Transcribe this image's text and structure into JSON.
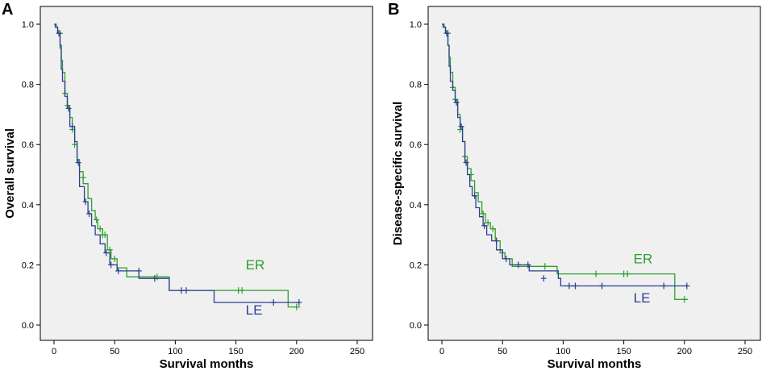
{
  "chart_data": [
    {
      "panel": "A",
      "type": "line",
      "subtype": "kaplan-meier-step",
      "title": "",
      "xlabel": "Survival months",
      "ylabel": "Overall survival",
      "xlim": [
        0,
        250
      ],
      "ylim": [
        0,
        1.0
      ],
      "xticks": [
        "0",
        "50",
        "100",
        "150",
        "200",
        "250"
      ],
      "yticks": [
        "0.0",
        "0.2",
        "0.4",
        "0.6",
        "0.8",
        "1.0"
      ],
      "grid": false,
      "legend_position": "inline-right",
      "series": [
        {
          "name": "ER",
          "label_pos": [
            158,
            0.185
          ],
          "steps": [
            [
              0,
              1.0
            ],
            [
              2,
              1.0
            ],
            [
              2,
              0.99
            ],
            [
              3,
              0.99
            ],
            [
              3,
              0.97
            ],
            [
              5,
              0.97
            ],
            [
              5,
              0.92
            ],
            [
              6,
              0.92
            ],
            [
              6,
              0.88
            ],
            [
              7,
              0.88
            ],
            [
              7,
              0.84
            ],
            [
              9,
              0.84
            ],
            [
              9,
              0.77
            ],
            [
              11,
              0.77
            ],
            [
              11,
              0.73
            ],
            [
              13,
              0.73
            ],
            [
              13,
              0.69
            ],
            [
              15,
              0.69
            ],
            [
              15,
              0.65
            ],
            [
              17,
              0.65
            ],
            [
              17,
              0.6
            ],
            [
              19,
              0.6
            ],
            [
              19,
              0.55
            ],
            [
              21,
              0.55
            ],
            [
              21,
              0.51
            ],
            [
              24,
              0.51
            ],
            [
              24,
              0.47
            ],
            [
              28,
              0.47
            ],
            [
              28,
              0.42
            ],
            [
              31,
              0.42
            ],
            [
              31,
              0.38
            ],
            [
              34,
              0.38
            ],
            [
              34,
              0.35
            ],
            [
              36,
              0.35
            ],
            [
              36,
              0.32
            ],
            [
              40,
              0.32
            ],
            [
              40,
              0.3
            ],
            [
              44,
              0.3
            ],
            [
              44,
              0.25
            ],
            [
              47,
              0.25
            ],
            [
              47,
              0.22
            ],
            [
              52,
              0.22
            ],
            [
              52,
              0.19
            ],
            [
              60,
              0.19
            ],
            [
              60,
              0.16
            ],
            [
              95,
              0.16
            ],
            [
              95,
              0.115
            ],
            [
              193,
              0.115
            ],
            [
              193,
              0.06
            ],
            [
              203,
              0.06
            ]
          ],
          "censored": [
            [
              5,
              0.97
            ],
            [
              9,
              0.77
            ],
            [
              11,
              0.73
            ],
            [
              15,
              0.65
            ],
            [
              17,
              0.6
            ],
            [
              24,
              0.49
            ],
            [
              35,
              0.35
            ],
            [
              38,
              0.32
            ],
            [
              40,
              0.3
            ],
            [
              42,
              0.3
            ],
            [
              46,
              0.25
            ],
            [
              50,
              0.22
            ],
            [
              85,
              0.16
            ],
            [
              152,
              0.115
            ],
            [
              155,
              0.115
            ],
            [
              200,
              0.06
            ]
          ],
          "color": "#2ca02c"
        },
        {
          "name": "LE",
          "label_pos": [
            158,
            0.035
          ],
          "steps": [
            [
              0,
              1.0
            ],
            [
              1,
              1.0
            ],
            [
              1,
              0.99
            ],
            [
              3,
              0.99
            ],
            [
              3,
              0.97
            ],
            [
              5,
              0.97
            ],
            [
              5,
              0.93
            ],
            [
              6,
              0.93
            ],
            [
              6,
              0.85
            ],
            [
              7,
              0.85
            ],
            [
              7,
              0.81
            ],
            [
              9,
              0.81
            ],
            [
              9,
              0.76
            ],
            [
              11,
              0.76
            ],
            [
              11,
              0.72
            ],
            [
              13,
              0.72
            ],
            [
              13,
              0.66
            ],
            [
              17,
              0.66
            ],
            [
              17,
              0.61
            ],
            [
              19,
              0.61
            ],
            [
              19,
              0.54
            ],
            [
              21,
              0.54
            ],
            [
              21,
              0.46
            ],
            [
              25,
              0.46
            ],
            [
              25,
              0.41
            ],
            [
              28,
              0.41
            ],
            [
              28,
              0.37
            ],
            [
              31,
              0.37
            ],
            [
              31,
              0.33
            ],
            [
              34,
              0.33
            ],
            [
              34,
              0.3
            ],
            [
              38,
              0.3
            ],
            [
              38,
              0.27
            ],
            [
              42,
              0.27
            ],
            [
              42,
              0.24
            ],
            [
              46,
              0.24
            ],
            [
              46,
              0.2
            ],
            [
              52,
              0.2
            ],
            [
              52,
              0.18
            ],
            [
              70,
              0.18
            ],
            [
              70,
              0.155
            ],
            [
              95,
              0.155
            ],
            [
              95,
              0.115
            ],
            [
              132,
              0.115
            ],
            [
              132,
              0.075
            ],
            [
              203,
              0.075
            ]
          ],
          "censored": [
            [
              4,
              0.97
            ],
            [
              12,
              0.72
            ],
            [
              15,
              0.66
            ],
            [
              20,
              0.54
            ],
            [
              26,
              0.41
            ],
            [
              29,
              0.37
            ],
            [
              43,
              0.24
            ],
            [
              47,
              0.2
            ],
            [
              53,
              0.18
            ],
            [
              70,
              0.18
            ],
            [
              83,
              0.155
            ],
            [
              105,
              0.115
            ],
            [
              109,
              0.115
            ],
            [
              181,
              0.075
            ],
            [
              202,
              0.075
            ]
          ],
          "color": "#2e3f8f"
        }
      ]
    },
    {
      "panel": "B",
      "type": "line",
      "subtype": "kaplan-meier-step",
      "title": "",
      "xlabel": "Survival months",
      "ylabel": "Disease-specific survival",
      "xlim": [
        0,
        250
      ],
      "ylim": [
        0,
        1.0
      ],
      "xticks": [
        "0",
        "50",
        "100",
        "150",
        "200",
        "250"
      ],
      "yticks": [
        "0.0",
        "0.2",
        "0.4",
        "0.6",
        "0.8",
        "1.0"
      ],
      "grid": false,
      "legend_position": "inline-right",
      "series": [
        {
          "name": "ER",
          "label_pos": [
            158,
            0.205
          ],
          "steps": [
            [
              0,
              1.0
            ],
            [
              2,
              1.0
            ],
            [
              2,
              0.99
            ],
            [
              3,
              0.99
            ],
            [
              3,
              0.97
            ],
            [
              5,
              0.97
            ],
            [
              5,
              0.93
            ],
            [
              6,
              0.93
            ],
            [
              6,
              0.89
            ],
            [
              7,
              0.89
            ],
            [
              7,
              0.84
            ],
            [
              9,
              0.84
            ],
            [
              9,
              0.79
            ],
            [
              11,
              0.79
            ],
            [
              11,
              0.75
            ],
            [
              13,
              0.75
            ],
            [
              13,
              0.7
            ],
            [
              15,
              0.7
            ],
            [
              15,
              0.65
            ],
            [
              17,
              0.65
            ],
            [
              17,
              0.61
            ],
            [
              19,
              0.61
            ],
            [
              19,
              0.56
            ],
            [
              21,
              0.56
            ],
            [
              21,
              0.52
            ],
            [
              24,
              0.52
            ],
            [
              24,
              0.48
            ],
            [
              27,
              0.48
            ],
            [
              27,
              0.44
            ],
            [
              30,
              0.44
            ],
            [
              30,
              0.41
            ],
            [
              33,
              0.41
            ],
            [
              33,
              0.37
            ],
            [
              36,
              0.37
            ],
            [
              36,
              0.34
            ],
            [
              40,
              0.34
            ],
            [
              40,
              0.32
            ],
            [
              44,
              0.32
            ],
            [
              44,
              0.28
            ],
            [
              48,
              0.28
            ],
            [
              48,
              0.24
            ],
            [
              52,
              0.24
            ],
            [
              52,
              0.22
            ],
            [
              58,
              0.22
            ],
            [
              58,
              0.195
            ],
            [
              95,
              0.195
            ],
            [
              95,
              0.17
            ],
            [
              192,
              0.17
            ],
            [
              192,
              0.085
            ],
            [
              203,
              0.085
            ]
          ],
          "censored": [
            [
              5,
              0.97
            ],
            [
              9,
              0.79
            ],
            [
              11,
              0.75
            ],
            [
              15,
              0.65
            ],
            [
              19,
              0.56
            ],
            [
              24,
              0.5
            ],
            [
              34,
              0.37
            ],
            [
              38,
              0.34
            ],
            [
              42,
              0.32
            ],
            [
              45,
              0.28
            ],
            [
              50,
              0.24
            ],
            [
              85,
              0.195
            ],
            [
              127,
              0.17
            ],
            [
              150,
              0.17
            ],
            [
              153,
              0.17
            ],
            [
              200,
              0.085
            ]
          ],
          "color": "#2ca02c"
        },
        {
          "name": "LE",
          "label_pos": [
            158,
            0.075
          ],
          "steps": [
            [
              0,
              1.0
            ],
            [
              1,
              1.0
            ],
            [
              1,
              0.99
            ],
            [
              3,
              0.99
            ],
            [
              3,
              0.97
            ],
            [
              5,
              0.97
            ],
            [
              5,
              0.93
            ],
            [
              6,
              0.93
            ],
            [
              6,
              0.86
            ],
            [
              7,
              0.86
            ],
            [
              7,
              0.81
            ],
            [
              9,
              0.81
            ],
            [
              9,
              0.78
            ],
            [
              11,
              0.78
            ],
            [
              11,
              0.74
            ],
            [
              13,
              0.74
            ],
            [
              13,
              0.69
            ],
            [
              15,
              0.69
            ],
            [
              15,
              0.66
            ],
            [
              17,
              0.66
            ],
            [
              17,
              0.61
            ],
            [
              19,
              0.61
            ],
            [
              19,
              0.54
            ],
            [
              21,
              0.54
            ],
            [
              21,
              0.5
            ],
            [
              23,
              0.5
            ],
            [
              23,
              0.46
            ],
            [
              25,
              0.46
            ],
            [
              25,
              0.43
            ],
            [
              28,
              0.43
            ],
            [
              28,
              0.39
            ],
            [
              31,
              0.39
            ],
            [
              31,
              0.36
            ],
            [
              34,
              0.36
            ],
            [
              34,
              0.33
            ],
            [
              37,
              0.33
            ],
            [
              37,
              0.3
            ],
            [
              41,
              0.3
            ],
            [
              41,
              0.28
            ],
            [
              45,
              0.28
            ],
            [
              45,
              0.25
            ],
            [
              50,
              0.25
            ],
            [
              50,
              0.22
            ],
            [
              56,
              0.22
            ],
            [
              56,
              0.2
            ],
            [
              72,
              0.2
            ],
            [
              72,
              0.18
            ],
            [
              96,
              0.18
            ],
            [
              96,
              0.155
            ],
            [
              98,
              0.155
            ],
            [
              98,
              0.13
            ],
            [
              203,
              0.13
            ]
          ],
          "censored": [
            [
              4,
              0.97
            ],
            [
              12,
              0.74
            ],
            [
              16,
              0.66
            ],
            [
              20,
              0.54
            ],
            [
              27,
              0.43
            ],
            [
              35,
              0.33
            ],
            [
              45,
              0.28
            ],
            [
              53,
              0.22
            ],
            [
              63,
              0.2
            ],
            [
              71,
              0.2
            ],
            [
              84,
              0.155
            ],
            [
              105,
              0.13
            ],
            [
              110,
              0.13
            ],
            [
              132,
              0.13
            ],
            [
              183,
              0.13
            ],
            [
              202,
              0.13
            ]
          ],
          "color": "#2e3f8f"
        }
      ]
    }
  ],
  "panels": [
    {
      "letter": "A"
    },
    {
      "letter": "B"
    }
  ],
  "colors": {
    "background": "#f0f0f0",
    "axis": "#000000",
    "er": "#2ca02c",
    "le": "#2e3f8f"
  }
}
